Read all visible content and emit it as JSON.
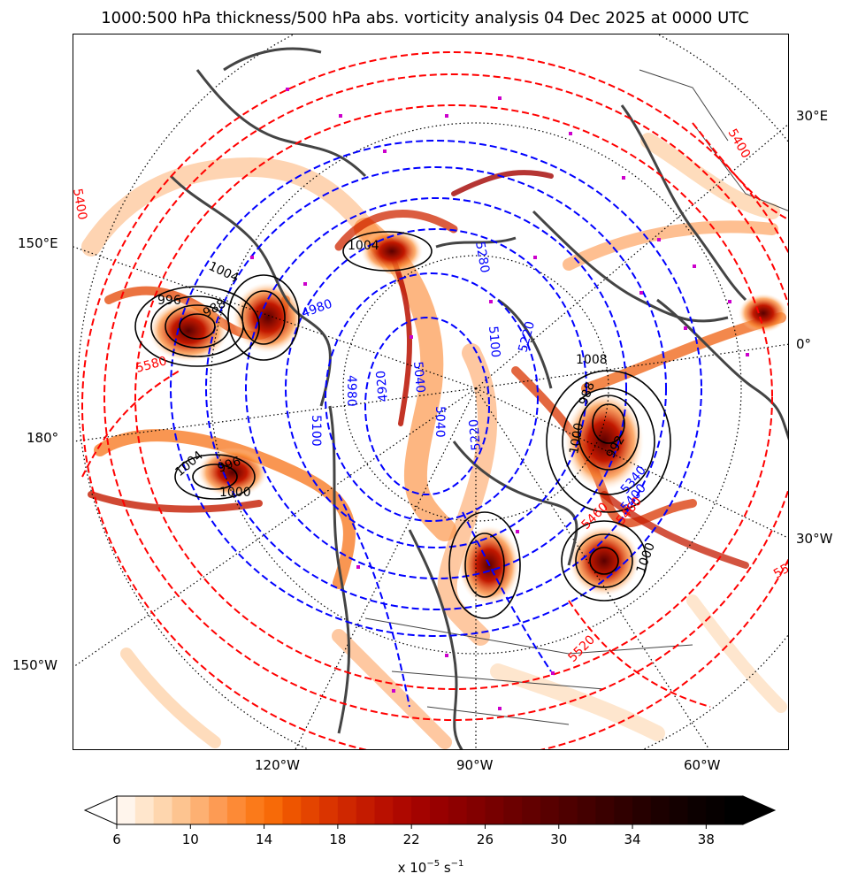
{
  "title": "1000:500 hPa thickness/500 hPa abs. vorticity analysis 04 Dec 2025 at 0000 UTC",
  "map": {
    "lon_labels": {
      "e30": "30°E",
      "e150": "150°E",
      "zero": "0°",
      "deg180": "180°",
      "w30": "30°W",
      "w150": "150°W",
      "w120": "120°W",
      "w90": "90°W",
      "w60": "60°W"
    },
    "thickness_labels_blue": [
      "5280",
      "5100",
      "4980",
      "5040",
      "4920",
      "5040",
      "4980",
      "5100",
      "5220",
      "5340",
      "5400",
      "5220"
    ],
    "thickness_labels_red": [
      "5580",
      "5460",
      "5520",
      "5400",
      "5400",
      "5580",
      "5460"
    ],
    "mslp_labels": [
      "1004",
      "1004",
      "996",
      "988",
      "1004",
      "996",
      "1000",
      "1008",
      "988",
      "1000",
      "992",
      "1000"
    ],
    "colors": {
      "thickness_cold": "#0000ff",
      "thickness_warm": "#ff0000",
      "mslp": "#000000",
      "coastline": "#444444",
      "marker": "#cc00cc"
    }
  },
  "colorbar": {
    "ticks": [
      "6",
      "10",
      "14",
      "18",
      "22",
      "26",
      "30",
      "34",
      "38"
    ],
    "units": "x 10",
    "units_exp": "−5",
    "units_tail": " s",
    "units_exp2": "−1",
    "colors": [
      "#fff5ec",
      "#ffe6cc",
      "#fed6ae",
      "#fdc490",
      "#fdb072",
      "#fd9b54",
      "#fd8a36",
      "#fb7a1a",
      "#f76a08",
      "#ee5500",
      "#e44400",
      "#da3400",
      "#cf2700",
      "#c41b00",
      "#b91000",
      "#ae0800",
      "#a30300",
      "#980000",
      "#8d0000",
      "#820000",
      "#770000",
      "#6c0000",
      "#620000",
      "#580000",
      "#4e0000",
      "#440000",
      "#3a0000",
      "#300000",
      "#260000",
      "#1c0000",
      "#140000",
      "#0c0000",
      "#060000",
      "#000000"
    ]
  }
}
